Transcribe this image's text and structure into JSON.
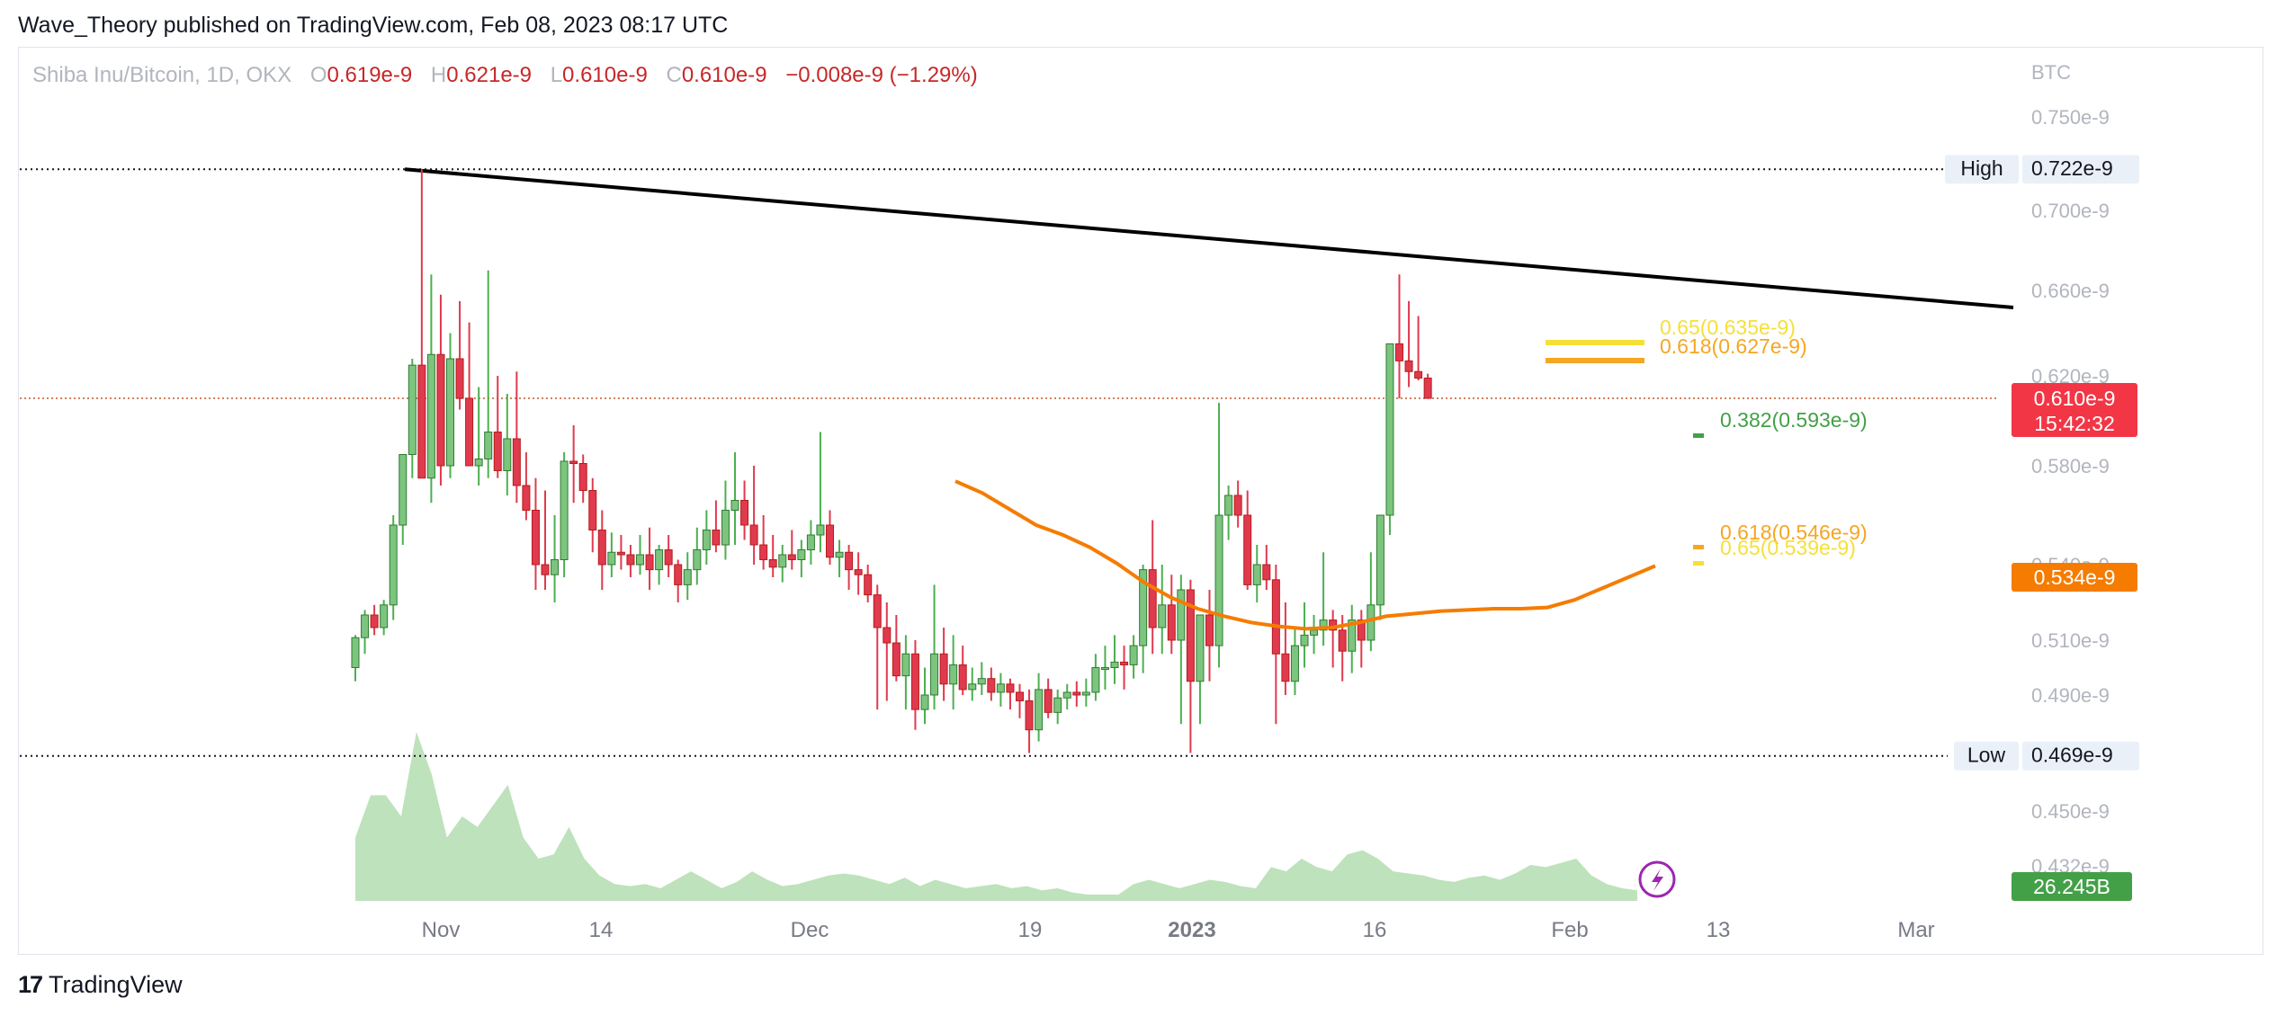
{
  "publisher_line": "Wave_Theory published on TradingView.com, Feb 08, 2023 08:17 UTC",
  "footer": {
    "logo_text": "17",
    "brand": "TradingView"
  },
  "legend": {
    "symbol": "Shiba Inu/Bitcoin, 1D, OKX",
    "o_label": "O",
    "o_value": "0.619e-9",
    "h_label": "H",
    "h_value": "0.621e-9",
    "l_label": "L",
    "l_value": "0.610e-9",
    "c_label": "C",
    "c_value": "0.610e-9",
    "change": "−0.008e-9 (−1.29%)"
  },
  "colors": {
    "up": "#4caf50",
    "up_fill": "#7dc47f",
    "down": "#e03a4e",
    "ma": "#f57c00",
    "trend": "#000000",
    "volume": "#a8d8a4",
    "fib_yellow": "#f5e03a",
    "fib_orange": "#f5a623",
    "fib_green": "#43a047"
  },
  "chart_data": {
    "type": "candlestick",
    "scale_unit": "BTC",
    "x_ticks": [
      "Nov",
      "14",
      "Dec",
      "19",
      "2023",
      "16",
      "Feb",
      "13",
      "Mar"
    ],
    "y_ticks": [
      "0.750e-9",
      "0.700e-9",
      "0.660e-9",
      "0.620e-9",
      "0.580e-9",
      "0.540e-9",
      "0.510e-9",
      "0.490e-9",
      "0.450e-9",
      "0.432e-9"
    ],
    "y_range": [
      0.43,
      0.76
    ],
    "candles": [
      [
        0.5,
        0.512,
        0.495,
        0.511
      ],
      [
        0.511,
        0.522,
        0.505,
        0.52
      ],
      [
        0.52,
        0.524,
        0.512,
        0.515
      ],
      [
        0.515,
        0.526,
        0.512,
        0.524
      ],
      [
        0.524,
        0.56,
        0.518,
        0.556
      ],
      [
        0.556,
        0.583,
        0.548,
        0.585
      ],
      [
        0.585,
        0.628,
        0.575,
        0.625
      ],
      [
        0.625,
        0.722,
        0.575,
        0.575
      ],
      [
        0.575,
        0.668,
        0.565,
        0.63
      ],
      [
        0.63,
        0.658,
        0.572,
        0.58
      ],
      [
        0.58,
        0.64,
        0.575,
        0.628
      ],
      [
        0.628,
        0.655,
        0.605,
        0.61
      ],
      [
        0.61,
        0.645,
        0.58,
        0.58
      ],
      [
        0.58,
        0.615,
        0.572,
        0.583
      ],
      [
        0.583,
        0.67,
        0.575,
        0.595
      ],
      [
        0.595,
        0.62,
        0.575,
        0.578
      ],
      [
        0.578,
        0.612,
        0.568,
        0.592
      ],
      [
        0.592,
        0.622,
        0.565,
        0.572
      ],
      [
        0.572,
        0.586,
        0.558,
        0.562
      ],
      [
        0.562,
        0.575,
        0.53,
        0.54
      ],
      [
        0.54,
        0.57,
        0.53,
        0.536
      ],
      [
        0.536,
        0.56,
        0.525,
        0.542
      ],
      [
        0.542,
        0.586,
        0.535,
        0.582
      ],
      [
        0.582,
        0.598,
        0.565,
        0.581
      ],
      [
        0.581,
        0.585,
        0.565,
        0.57
      ],
      [
        0.57,
        0.575,
        0.545,
        0.554
      ],
      [
        0.554,
        0.562,
        0.53,
        0.54
      ],
      [
        0.54,
        0.553,
        0.535,
        0.545
      ],
      [
        0.545,
        0.552,
        0.538,
        0.544
      ],
      [
        0.544,
        0.548,
        0.535,
        0.54
      ],
      [
        0.54,
        0.552,
        0.536,
        0.544
      ],
      [
        0.544,
        0.555,
        0.53,
        0.538
      ],
      [
        0.538,
        0.548,
        0.532,
        0.546
      ],
      [
        0.546,
        0.552,
        0.535,
        0.54
      ],
      [
        0.54,
        0.542,
        0.525,
        0.532
      ],
      [
        0.532,
        0.545,
        0.526,
        0.538
      ],
      [
        0.538,
        0.555,
        0.532,
        0.546
      ],
      [
        0.546,
        0.562,
        0.54,
        0.554
      ],
      [
        0.554,
        0.566,
        0.545,
        0.548
      ],
      [
        0.548,
        0.574,
        0.542,
        0.562
      ],
      [
        0.562,
        0.586,
        0.548,
        0.566
      ],
      [
        0.566,
        0.574,
        0.55,
        0.556
      ],
      [
        0.556,
        0.58,
        0.54,
        0.548
      ],
      [
        0.548,
        0.56,
        0.538,
        0.542
      ],
      [
        0.542,
        0.552,
        0.535,
        0.539
      ],
      [
        0.539,
        0.548,
        0.533,
        0.544
      ],
      [
        0.544,
        0.554,
        0.538,
        0.542
      ],
      [
        0.542,
        0.55,
        0.535,
        0.546
      ],
      [
        0.546,
        0.558,
        0.54,
        0.552
      ],
      [
        0.552,
        0.595,
        0.545,
        0.556
      ],
      [
        0.556,
        0.562,
        0.54,
        0.543
      ],
      [
        0.543,
        0.55,
        0.535,
        0.545
      ],
      [
        0.545,
        0.548,
        0.53,
        0.538
      ],
      [
        0.538,
        0.545,
        0.528,
        0.536
      ],
      [
        0.536,
        0.54,
        0.525,
        0.528
      ],
      [
        0.528,
        0.532,
        0.485,
        0.515
      ],
      [
        0.515,
        0.525,
        0.488,
        0.509
      ],
      [
        0.509,
        0.52,
        0.495,
        0.497
      ],
      [
        0.497,
        0.512,
        0.485,
        0.505
      ],
      [
        0.505,
        0.51,
        0.478,
        0.485
      ],
      [
        0.485,
        0.5,
        0.48,
        0.49
      ],
      [
        0.49,
        0.532,
        0.485,
        0.505
      ],
      [
        0.505,
        0.515,
        0.488,
        0.494
      ],
      [
        0.494,
        0.512,
        0.485,
        0.501
      ],
      [
        0.501,
        0.508,
        0.49,
        0.492
      ],
      [
        0.492,
        0.5,
        0.488,
        0.494
      ],
      [
        0.494,
        0.502,
        0.49,
        0.496
      ],
      [
        0.496,
        0.5,
        0.488,
        0.491
      ],
      [
        0.491,
        0.498,
        0.486,
        0.494
      ],
      [
        0.494,
        0.496,
        0.485,
        0.491
      ],
      [
        0.491,
        0.494,
        0.482,
        0.488
      ],
      [
        0.488,
        0.492,
        0.47,
        0.478
      ],
      [
        0.478,
        0.498,
        0.474,
        0.492
      ],
      [
        0.492,
        0.496,
        0.482,
        0.484
      ],
      [
        0.484,
        0.492,
        0.48,
        0.489
      ],
      [
        0.489,
        0.494,
        0.485,
        0.491
      ],
      [
        0.491,
        0.495,
        0.486,
        0.49
      ],
      [
        0.49,
        0.496,
        0.486,
        0.491
      ],
      [
        0.491,
        0.505,
        0.488,
        0.5
      ],
      [
        0.5,
        0.508,
        0.492,
        0.5
      ],
      [
        0.5,
        0.512,
        0.494,
        0.502
      ],
      [
        0.502,
        0.508,
        0.492,
        0.501
      ],
      [
        0.501,
        0.512,
        0.496,
        0.508
      ],
      [
        0.508,
        0.54,
        0.498,
        0.538
      ],
      [
        0.538,
        0.558,
        0.505,
        0.515
      ],
      [
        0.515,
        0.54,
        0.505,
        0.524
      ],
      [
        0.524,
        0.536,
        0.505,
        0.51
      ],
      [
        0.51,
        0.536,
        0.48,
        0.53
      ],
      [
        0.53,
        0.534,
        0.47,
        0.495
      ],
      [
        0.495,
        0.52,
        0.48,
        0.52
      ],
      [
        0.52,
        0.53,
        0.495,
        0.508
      ],
      [
        0.508,
        0.608,
        0.5,
        0.56
      ],
      [
        0.56,
        0.572,
        0.55,
        0.568
      ],
      [
        0.568,
        0.574,
        0.555,
        0.56
      ],
      [
        0.56,
        0.57,
        0.53,
        0.532
      ],
      [
        0.532,
        0.548,
        0.525,
        0.54
      ],
      [
        0.54,
        0.548,
        0.53,
        0.534
      ],
      [
        0.534,
        0.54,
        0.48,
        0.505
      ],
      [
        0.505,
        0.525,
        0.49,
        0.495
      ],
      [
        0.495,
        0.515,
        0.49,
        0.508
      ],
      [
        0.508,
        0.525,
        0.5,
        0.512
      ],
      [
        0.512,
        0.52,
        0.505,
        0.514
      ],
      [
        0.514,
        0.545,
        0.508,
        0.518
      ],
      [
        0.518,
        0.522,
        0.5,
        0.514
      ],
      [
        0.514,
        0.52,
        0.495,
        0.506
      ],
      [
        0.506,
        0.524,
        0.498,
        0.518
      ],
      [
        0.518,
        0.522,
        0.5,
        0.51
      ],
      [
        0.51,
        0.545,
        0.506,
        0.524
      ],
      [
        0.524,
        0.56,
        0.518,
        0.56
      ],
      [
        0.56,
        0.635,
        0.552,
        0.635
      ],
      [
        0.635,
        0.668,
        0.61,
        0.627
      ],
      [
        0.627,
        0.655,
        0.615,
        0.622
      ],
      [
        0.622,
        0.648,
        0.618,
        0.619
      ],
      [
        0.619,
        0.621,
        0.61,
        0.61
      ]
    ],
    "ma_points": [
      [
        0.574,
        0.5735
      ],
      [
        0.567,
        0.571
      ],
      [
        0.56,
        0.565
      ],
      [
        0.554,
        0.558
      ],
      [
        0.55,
        0.554
      ],
      [
        0.545,
        0.549
      ],
      [
        0.54,
        0.541
      ],
      [
        0.534,
        0.532
      ],
      [
        0.53,
        0.524
      ],
      [
        0.527,
        0.518
      ],
      [
        0.525,
        0.514
      ],
      [
        0.523,
        0.511
      ],
      [
        0.522,
        0.509
      ],
      [
        0.521,
        0.508
      ],
      [
        0.52,
        0.51
      ],
      [
        0.519,
        0.515
      ],
      [
        0.519,
        0.52
      ],
      [
        0.519,
        0.522
      ],
      [
        0.519,
        0.524
      ],
      [
        0.518,
        0.526
      ],
      [
        0.518,
        0.527
      ],
      [
        0.517,
        0.528
      ],
      [
        0.517,
        0.529
      ],
      [
        0.522,
        0.53
      ],
      [
        0.53,
        0.531
      ],
      [
        0.538,
        0.532
      ],
      [
        0.545,
        0.534
      ]
    ],
    "volume_points": [
      0.3,
      0.5,
      0.5,
      0.4,
      0.8,
      0.6,
      0.3,
      0.4,
      0.35,
      0.45,
      0.55,
      0.3,
      0.2,
      0.22,
      0.35,
      0.2,
      0.12,
      0.08,
      0.07,
      0.08,
      0.06,
      0.1,
      0.14,
      0.1,
      0.06,
      0.09,
      0.14,
      0.1,
      0.07,
      0.08,
      0.1,
      0.12,
      0.13,
      0.12,
      0.1,
      0.08,
      0.11,
      0.07,
      0.1,
      0.08,
      0.06,
      0.07,
      0.08,
      0.06,
      0.07,
      0.05,
      0.06,
      0.04,
      0.03,
      0.03,
      0.03,
      0.08,
      0.1,
      0.08,
      0.06,
      0.08,
      0.1,
      0.09,
      0.07,
      0.06,
      0.16,
      0.14,
      0.2,
      0.16,
      0.14,
      0.22,
      0.24,
      0.2,
      0.14,
      0.13,
      0.12,
      0.1,
      0.09,
      0.11,
      0.12,
      0.1,
      0.13,
      0.17,
      0.16,
      0.18,
      0.2,
      0.12,
      0.08,
      0.06,
      0.05
    ],
    "price_labels": {
      "high_tag": "High",
      "high_value": "0.722e-9",
      "low_tag": "Low",
      "low_value": "0.469e-9",
      "last_value": "0.610e-9",
      "countdown": "15:42:32",
      "ma_value": "0.534e-9",
      "volume_value": "26.245B"
    },
    "fib_labels": {
      "f065_top": "0.65(0.635e-9)",
      "f0618_top": "0.618(0.627e-9)",
      "f0382": "0.382(0.593e-9)",
      "f0618_low": "0.618(0.546e-9)",
      "f065_low": "0.65(0.539e-9)"
    },
    "levels": {
      "high": 0.722,
      "low": 0.469,
      "last": 0.61
    },
    "trendline": {
      "start": [
        0,
        0.722
      ],
      "end": [
        1,
        0.652
      ]
    }
  }
}
